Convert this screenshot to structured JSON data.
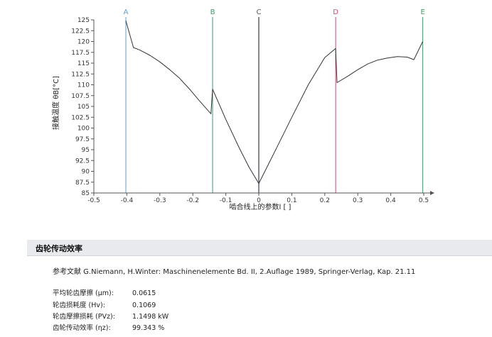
{
  "chart_data": {
    "type": "line",
    "ylabel": "接触温度 θB[°C]",
    "xlabel": "啮合线上的参数l [ ]",
    "xlim": [
      -0.5,
      0.5
    ],
    "ylim": [
      85,
      125
    ],
    "x_ticks": [
      "-0.5",
      "-0.4",
      "-0.3",
      "-0.2",
      "-0.1",
      "0",
      "0.1",
      "0.2",
      "0.3",
      "0.4",
      "0.5"
    ],
    "x_tick_values": [
      -0.5,
      -0.4,
      -0.3,
      -0.2,
      -0.1,
      0,
      0.1,
      0.2,
      0.3,
      0.4,
      0.5
    ],
    "y_ticks": [
      "85",
      "87.5",
      "90",
      "92.5",
      "95",
      "97.5",
      "100",
      "102.5",
      "105",
      "107.5",
      "110",
      "112.5",
      "115",
      "117.5",
      "120",
      "122.5",
      "125"
    ],
    "y_tick_values": [
      85,
      87.5,
      90,
      92.5,
      95,
      97.5,
      100,
      102.5,
      105,
      107.5,
      110,
      112.5,
      115,
      117.5,
      120,
      122.5,
      125
    ],
    "markers": [
      {
        "label": "A",
        "x": -0.403,
        "color": "#5aa0d8"
      },
      {
        "label": "B",
        "x": -0.14,
        "color": "#3a9e6a"
      },
      {
        "label": "C",
        "x": 0.0,
        "color": "#555566"
      },
      {
        "label": "D",
        "x": 0.233,
        "color": "#d04a6a"
      },
      {
        "label": "E",
        "x": 0.497,
        "color": "#3a9e6a"
      }
    ],
    "series": [
      {
        "color": "#333333",
        "x": [
          -0.403,
          -0.38,
          -0.36,
          -0.33,
          -0.3,
          -0.27,
          -0.24,
          -0.21,
          -0.18,
          -0.145,
          -0.14,
          -0.1,
          -0.06,
          -0.03,
          0.0,
          0.05,
          0.1,
          0.15,
          0.2,
          0.233,
          0.237,
          0.27,
          0.3,
          0.33,
          0.36,
          0.39,
          0.42,
          0.45,
          0.47,
          0.497
        ],
        "y": [
          124.8,
          118.6,
          118.0,
          116.8,
          115.3,
          113.5,
          111.5,
          109.0,
          106.3,
          103.3,
          109.0,
          102.0,
          95.5,
          91.0,
          87.2,
          94.8,
          102.5,
          110.0,
          116.3,
          118.4,
          110.5,
          112.0,
          113.5,
          114.8,
          115.7,
          116.2,
          116.5,
          116.4,
          115.8,
          120.0
        ]
      }
    ]
  },
  "section": {
    "title": "齿轮传动效率",
    "reference": "参考文献 G.Niemann, H.Winter: Maschinenelemente Bd. II, 2.Auflage 1989, Springer-Verlag, Kap. 21.11",
    "results": [
      {
        "label": "平均轮齿摩擦 (μm):",
        "value": "0.0615"
      },
      {
        "label": "轮齿损耗度 (Hv):",
        "value": "0.1069"
      },
      {
        "label": "轮齿摩擦损耗 (PVz):",
        "value": "1.1498 kW"
      },
      {
        "label": "齿轮传动效率 (ηz):",
        "value": "99.343 %"
      }
    ]
  }
}
